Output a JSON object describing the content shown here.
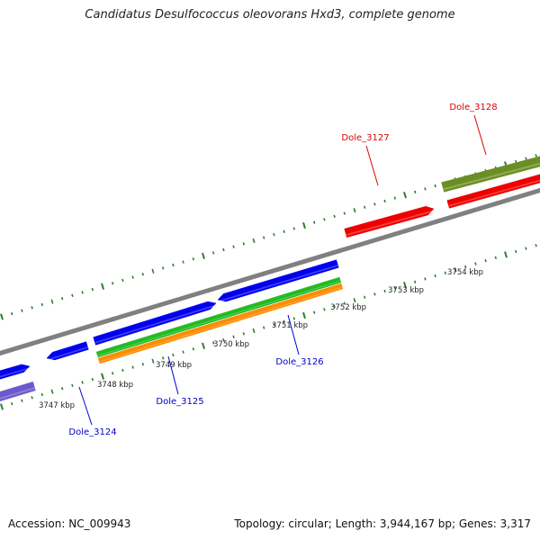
{
  "title": "Candidatus Desulfococcus oleovorans Hxd3, complete genome",
  "footer": {
    "accession": "Accession: NC_009943",
    "summary": "Topology: circular; Length: 3,944,167 bp; Genes: 3,317"
  },
  "colors": {
    "background": "#ffffff",
    "backbone": "#808080",
    "ticks": "#2e7d32",
    "gene_blue": "#0000ee",
    "gene_red": "#ee0000",
    "gene_olive": "#6b8e23",
    "gene_green": "#22bb22",
    "gene_orange": "#ff8c00",
    "gene_lavender": "#6a5acd",
    "label_blue": "#0000cc",
    "label_red": "#dd0000"
  },
  "scale_labels": [
    "3747 kbp",
    "3748 kbp",
    "3749 kbp",
    "3750 kbp",
    "3751 kbp",
    "3752 kbp",
    "3753 kbp",
    "3754 kbp"
  ],
  "gene_labels": [
    {
      "text": "Dole_3124",
      "color": "blue"
    },
    {
      "text": "Dole_3125",
      "color": "blue"
    },
    {
      "text": "Dole_3126",
      "color": "blue"
    },
    {
      "text": "Dole_3127",
      "color": "red"
    },
    {
      "text": "Dole_3128",
      "color": "red"
    }
  ]
}
